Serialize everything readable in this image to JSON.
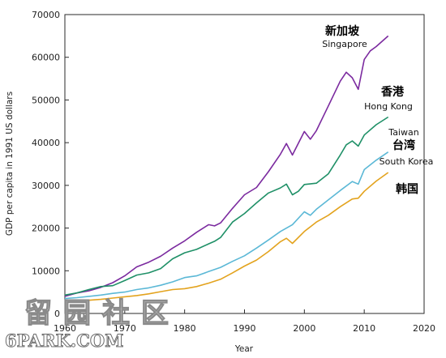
{
  "chart_data": {
    "type": "line",
    "xlabel": "Year",
    "ylabel": "GDP per capita in 1991 US dollars",
    "xlim": [
      1960,
      2020
    ],
    "ylim": [
      0,
      70000
    ],
    "x_ticks": [
      1960,
      1970,
      1980,
      1990,
      2000,
      2010,
      2020
    ],
    "y_ticks": [
      0,
      10000,
      20000,
      30000,
      40000,
      50000,
      60000,
      70000
    ],
    "grid": false,
    "series": [
      {
        "name_en": "Singapore",
        "name_zh": "新加坡",
        "color": "#7b2a9f",
        "x": [
          1960,
          1962,
          1964,
          1966,
          1968,
          1970,
          1972,
          1974,
          1976,
          1978,
          1980,
          1982,
          1984,
          1985,
          1986,
          1988,
          1990,
          1992,
          1994,
          1996,
          1997,
          1998,
          2000,
          2001,
          2002,
          2004,
          2006,
          2007,
          2008,
          2009,
          2010,
          2011,
          2012,
          2014
        ],
        "y": [
          4000,
          4800,
          5300,
          6100,
          7200,
          8800,
          10900,
          12000,
          13400,
          15300,
          17000,
          19000,
          20800,
          20500,
          21200,
          24600,
          27800,
          29500,
          33200,
          37300,
          39800,
          37100,
          42600,
          40800,
          42800,
          48600,
          54400,
          56500,
          55200,
          52500,
          59500,
          61500,
          62500,
          65000
        ]
      },
      {
        "name_en": "Hong Kong",
        "name_zh": "香港",
        "color": "#1f9067",
        "x": [
          1960,
          1962,
          1964,
          1966,
          1968,
          1970,
          1972,
          1974,
          1976,
          1978,
          1980,
          1982,
          1984,
          1985,
          1986,
          1988,
          1990,
          1992,
          1994,
          1996,
          1997,
          1998,
          1999,
          2000,
          2002,
          2004,
          2006,
          2007,
          2008,
          2009,
          2010,
          2012,
          2014
        ],
        "y": [
          4300,
          4800,
          5600,
          6300,
          6500,
          7700,
          9000,
          9500,
          10500,
          12800,
          14200,
          15000,
          16300,
          16900,
          17800,
          21400,
          23400,
          25900,
          28200,
          29400,
          30300,
          27800,
          28600,
          30200,
          30500,
          32700,
          37100,
          39500,
          40400,
          39200,
          41800,
          44200,
          46000
        ]
      },
      {
        "name_en": "Taiwan",
        "name_zh": "台湾",
        "color": "#5bb8d6",
        "x": [
          1960,
          1962,
          1964,
          1966,
          1968,
          1970,
          1972,
          1974,
          1976,
          1978,
          1980,
          1982,
          1984,
          1986,
          1988,
          1990,
          1992,
          1994,
          1996,
          1998,
          2000,
          2001,
          2002,
          2004,
          2006,
          2008,
          2009,
          2010,
          2012,
          2014
        ],
        "y": [
          3500,
          3700,
          4000,
          4300,
          4700,
          5000,
          5600,
          6000,
          6600,
          7400,
          8400,
          8800,
          9800,
          10800,
          12200,
          13500,
          15300,
          17200,
          19200,
          20800,
          23800,
          23000,
          24400,
          26600,
          28800,
          30900,
          30300,
          33700,
          35900,
          37800
        ]
      },
      {
        "name_en": "South Korea",
        "name_zh": "韩国",
        "color": "#e3a31e",
        "x": [
          1960,
          1962,
          1964,
          1966,
          1968,
          1970,
          1972,
          1974,
          1976,
          1978,
          1980,
          1982,
          1984,
          1986,
          1988,
          1990,
          1992,
          1994,
          1996,
          1997,
          1998,
          2000,
          2002,
          2004,
          2006,
          2008,
          2009,
          2010,
          2012,
          2014
        ],
        "y": [
          2800,
          2900,
          3100,
          3300,
          3600,
          3900,
          4200,
          4600,
          5100,
          5600,
          5800,
          6300,
          7100,
          8000,
          9500,
          11100,
          12500,
          14500,
          16800,
          17600,
          16400,
          19200,
          21400,
          23000,
          25000,
          26800,
          27000,
          28600,
          31000,
          33000
        ]
      }
    ]
  },
  "watermark": {
    "chars": [
      "留",
      "园",
      "社",
      "区"
    ],
    "site": "6PARK.COM"
  }
}
